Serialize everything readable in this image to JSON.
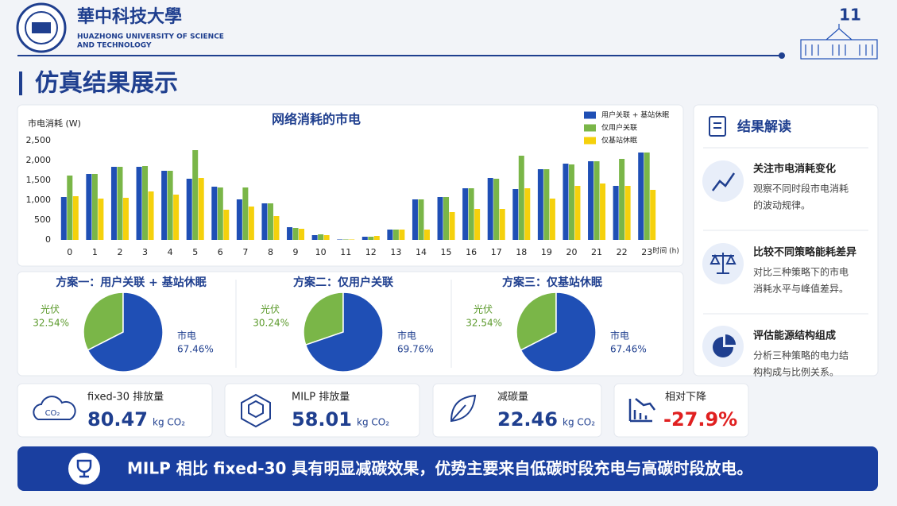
{
  "header": {
    "school_cn": "華中科技大學",
    "school_en": [
      "HUAZHONG UNIVERSITY OF SCIENCE",
      "AND TECHNOLOGY"
    ],
    "page_number": "11",
    "title": "仿真结果展示"
  },
  "chart_data": [
    {
      "type": "bar",
      "title": "网络消耗的市电",
      "y_label": "市电消耗 (W)",
      "x_label": "时间 (h)",
      "categories": [
        "0",
        "1",
        "2",
        "3",
        "4",
        "5",
        "6",
        "7",
        "8",
        "9",
        "10",
        "11",
        "12",
        "13",
        "14",
        "15",
        "16",
        "17",
        "18",
        "19",
        "20",
        "21",
        "22",
        "23"
      ],
      "series": [
        {
          "name": "用户关联 + 基站休眠",
          "color": "#1f4fb5",
          "values": [
            1080,
            1660,
            1840,
            1840,
            1740,
            1540,
            1340,
            1020,
            920,
            320,
            120,
            10,
            80,
            260,
            1020,
            1080,
            1300,
            1560,
            1280,
            1780,
            1920,
            1980,
            1360,
            2200
          ]
        },
        {
          "name": "仅用户关联",
          "color": "#7ab648",
          "values": [
            1620,
            1660,
            1840,
            1860,
            1740,
            2260,
            1320,
            1320,
            920,
            300,
            140,
            10,
            80,
            260,
            1020,
            1080,
            1300,
            1540,
            2120,
            1780,
            1900,
            1980,
            2040,
            2200
          ]
        },
        {
          "name": "仅基站休眠",
          "color": "#f5d10c",
          "values": [
            1100,
            1040,
            1060,
            1220,
            1140,
            1560,
            760,
            840,
            600,
            280,
            120,
            10,
            100,
            260,
            260,
            700,
            780,
            780,
            1300,
            1040,
            1360,
            1420,
            1360,
            1260
          ]
        }
      ],
      "ylim": [
        0,
        2500
      ],
      "yticks": [
        0,
        500,
        {
          "value": 1000,
          "label": "1,000"
        },
        {
          "value": 1500,
          "label": "1,500"
        },
        {
          "value": 2000,
          "label": "2,000"
        },
        {
          "value": 2500,
          "label": "2,500"
        }
      ],
      "grid": false,
      "legend": "top-right"
    },
    {
      "type": "pie",
      "title": "方案一：用户关联 + 基站休眠",
      "categories": [
        "光伏",
        "市电"
      ],
      "values": [
        32.54,
        67.46
      ],
      "value_labels": [
        "32.54%",
        "67.46%"
      ],
      "colors": [
        "#7ab648",
        "#1f4fb5"
      ]
    },
    {
      "type": "pie",
      "title": "方案二：仅用户关联",
      "categories": [
        "光伏",
        "市电"
      ],
      "values": [
        30.24,
        69.76
      ],
      "value_labels": [
        "30.24%",
        "69.76%"
      ],
      "colors": [
        "#7ab648",
        "#1f4fb5"
      ]
    },
    {
      "type": "pie",
      "title": "方案三：仅基站休眠",
      "categories": [
        "光伏",
        "市电"
      ],
      "values": [
        32.54,
        67.46
      ],
      "value_labels": [
        "32.54%",
        "67.46%"
      ],
      "colors": [
        "#7ab648",
        "#1f4fb5"
      ]
    }
  ],
  "insights": {
    "title": "结果解读",
    "items": [
      {
        "heading": "关注市电消耗变化",
        "desc": [
          "观察不同时段市电消耗",
          "的波动规律。"
        ]
      },
      {
        "heading": "比较不同策略能耗差异",
        "desc": [
          "对比三种策略下的市电",
          "消耗水平与峰值差异。"
        ]
      },
      {
        "heading": "评估能源结构组成",
        "desc": [
          "分析三种策略的电力结",
          "构构成与比例关系。"
        ]
      }
    ]
  },
  "metrics": [
    {
      "label": "fixed-30 排放量",
      "value": "80.47",
      "unit": "kg CO₂"
    },
    {
      "label": "MILP 排放量",
      "value": "58.01",
      "unit": "kg CO₂"
    },
    {
      "label": "减碳量",
      "value": "22.46",
      "unit": "kg CO₂"
    },
    {
      "label": "相对下降",
      "value": "-27.9%"
    }
  ],
  "conclusion": "MILP 相比 fixed-30 具有明显减碳效果，优势主要来自低碳时段充电与高碳时段放电。",
  "icon_labels": {
    "co2": "CO₂"
  }
}
